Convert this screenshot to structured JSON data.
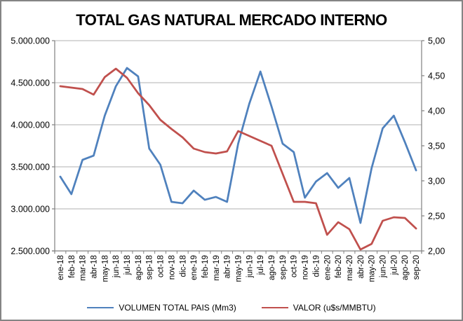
{
  "chart_data": {
    "type": "line",
    "title": "TOTAL GAS NATURAL MERCADO INTERNO",
    "categories": [
      "ene-18",
      "feb-18",
      "mar-18",
      "abr-18",
      "may-18",
      "jun-18",
      "jul-18",
      "ago-18",
      "sep-18",
      "oct-18",
      "nov-18",
      "dic-18",
      "ene-19",
      "feb-19",
      "mar-19",
      "abr-19",
      "may-19",
      "jun-19",
      "jul-19",
      "ago-19",
      "sep-19",
      "oct-19",
      "nov-19",
      "dic-19",
      "ene-20",
      "feb-20",
      "mar-20",
      "abr-20",
      "may-20",
      "jun-20",
      "jul-20",
      "ago-20",
      "sep-20"
    ],
    "series": [
      {
        "name": "VOLUMEN TOTAL PAIS (Mm3)",
        "axis": "left",
        "color": "#4F81BD",
        "values": [
          3383000,
          3175000,
          3583000,
          3633000,
          4108000,
          4458000,
          4675000,
          4575000,
          3717000,
          3525000,
          3083000,
          3067000,
          3217000,
          3108000,
          3142000,
          3083000,
          3775000,
          4250000,
          4633000,
          4217000,
          3775000,
          3675000,
          3133000,
          3325000,
          3425000,
          3250000,
          3367000,
          2833000,
          3483000,
          3958000,
          4108000,
          3792000,
          3458000
        ]
      },
      {
        "name": "VALOR (u$s/MMBTU)",
        "axis": "right",
        "color": "#C0504D",
        "values": [
          4.35,
          4.33,
          4.31,
          4.23,
          4.48,
          4.6,
          4.47,
          4.25,
          4.08,
          3.87,
          3.74,
          3.62,
          3.46,
          3.41,
          3.39,
          3.42,
          3.71,
          3.64,
          3.57,
          3.5,
          3.1,
          2.7,
          2.7,
          2.68,
          2.23,
          2.41,
          2.31,
          2.02,
          2.1,
          2.43,
          2.48,
          2.47,
          2.32
        ]
      }
    ],
    "left_axis": {
      "min": 2500000,
      "max": 5000000,
      "step": 500000,
      "tick_labels": [
        "5.000.000",
        "4.500.000",
        "4.000.000",
        "3.500.000",
        "3.000.000",
        "2.500.000"
      ]
    },
    "right_axis": {
      "min": 2.0,
      "max": 5.0,
      "step": 0.5,
      "tick_labels": [
        "5,00",
        "4,50",
        "4,00",
        "3,50",
        "3,00",
        "2,50",
        "2,00"
      ]
    },
    "legend_position": "bottom",
    "grid": true
  },
  "colors": {
    "gridline": "#B0B0B0",
    "axis": "#808080",
    "text": "#000000",
    "frame_border": "#848484",
    "background": "#FFFFFF"
  }
}
